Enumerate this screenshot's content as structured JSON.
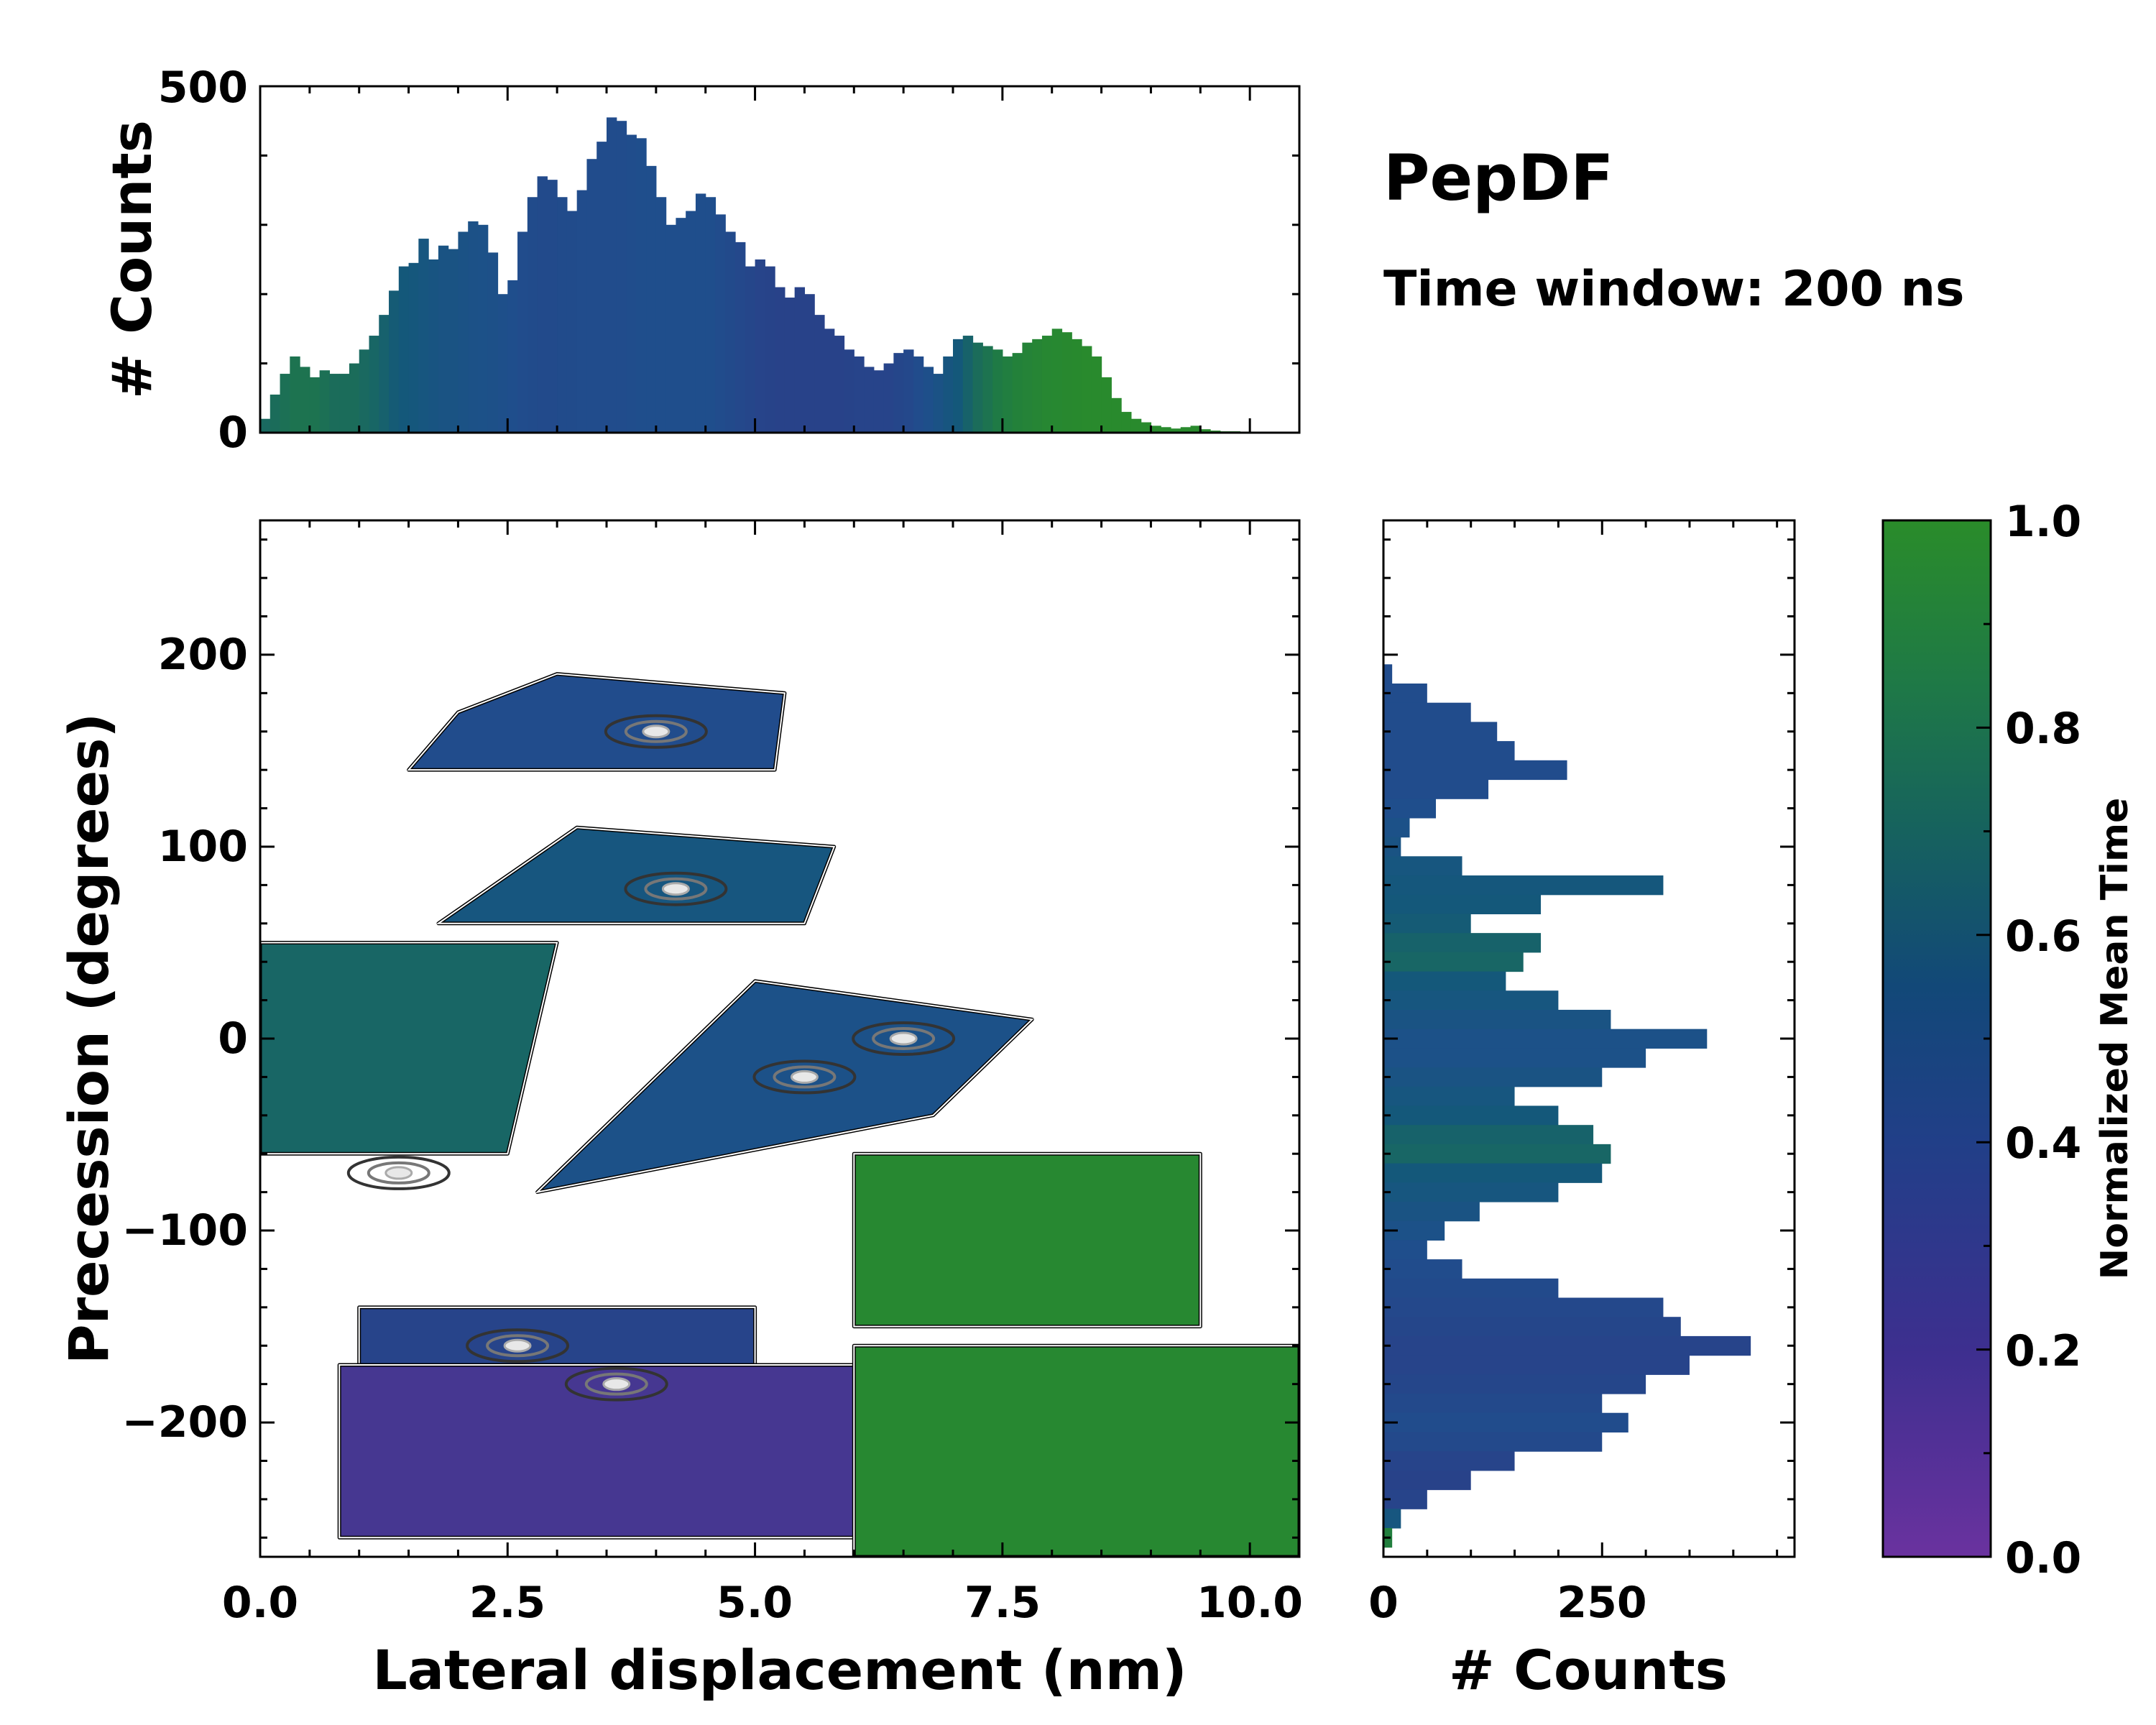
{
  "chart_data": [
    {
      "id": "top_histogram",
      "type": "histogram",
      "ylabel": "# Counts",
      "xlim": [
        0.0,
        10.5
      ],
      "ylim": [
        0,
        500
      ],
      "yticks": [
        "0",
        "500"
      ],
      "x": [
        0.0,
        0.1,
        0.2,
        0.3,
        0.4,
        0.5,
        0.6,
        0.7,
        0.8,
        0.9,
        1.0,
        1.1,
        1.2,
        1.3,
        1.4,
        1.5,
        1.6,
        1.7,
        1.8,
        1.9,
        2.0,
        2.1,
        2.2,
        2.3,
        2.4,
        2.5,
        2.6,
        2.7,
        2.8,
        2.9,
        3.0,
        3.1,
        3.2,
        3.3,
        3.4,
        3.5,
        3.6,
        3.7,
        3.8,
        3.9,
        4.0,
        4.1,
        4.2,
        4.3,
        4.4,
        4.5,
        4.6,
        4.7,
        4.8,
        4.9,
        5.0,
        5.1,
        5.2,
        5.3,
        5.4,
        5.5,
        5.6,
        5.7,
        5.8,
        5.9,
        6.0,
        6.1,
        6.2,
        6.3,
        6.4,
        6.5,
        6.6,
        6.7,
        6.8,
        6.9,
        7.0,
        7.1,
        7.2,
        7.3,
        7.4,
        7.5,
        7.6,
        7.7,
        7.8,
        7.9,
        8.0,
        8.1,
        8.2,
        8.3,
        8.4,
        8.5,
        8.6,
        8.7,
        8.8,
        8.9,
        9.0,
        9.1,
        9.2,
        9.3,
        9.4,
        9.5,
        9.6,
        9.7,
        9.8,
        9.9,
        10.0,
        10.1,
        10.2,
        10.3,
        10.4
      ],
      "values": [
        20,
        55,
        85,
        110,
        95,
        80,
        90,
        85,
        85,
        100,
        120,
        140,
        170,
        205,
        240,
        245,
        280,
        250,
        270,
        265,
        290,
        305,
        300,
        260,
        200,
        220,
        290,
        340,
        370,
        365,
        340,
        320,
        350,
        395,
        420,
        455,
        450,
        430,
        425,
        385,
        340,
        300,
        310,
        320,
        345,
        340,
        315,
        290,
        275,
        240,
        250,
        240,
        210,
        195,
        210,
        200,
        170,
        150,
        140,
        120,
        110,
        95,
        90,
        100,
        115,
        120,
        110,
        95,
        85,
        110,
        135,
        140,
        130,
        125,
        120,
        110,
        115,
        130,
        135,
        140,
        150,
        145,
        135,
        125,
        110,
        80,
        50,
        30,
        20,
        15,
        10,
        8,
        6,
        8,
        10,
        5,
        3,
        2,
        2,
        1,
        1,
        1,
        0,
        0,
        0
      ],
      "time_values": [
        0.7,
        0.72,
        0.74,
        0.76,
        0.76,
        0.76,
        0.74,
        0.72,
        0.72,
        0.72,
        0.7,
        0.68,
        0.65,
        0.62,
        0.6,
        0.58,
        0.55,
        0.52,
        0.5,
        0.5,
        0.48,
        0.46,
        0.45,
        0.44,
        0.42,
        0.4,
        0.38,
        0.37,
        0.36,
        0.36,
        0.37,
        0.37,
        0.38,
        0.38,
        0.38,
        0.38,
        0.38,
        0.39,
        0.4,
        0.4,
        0.4,
        0.4,
        0.4,
        0.4,
        0.4,
        0.4,
        0.38,
        0.36,
        0.34,
        0.32,
        0.3,
        0.29,
        0.28,
        0.28,
        0.28,
        0.28,
        0.28,
        0.28,
        0.28,
        0.29,
        0.3,
        0.3,
        0.3,
        0.3,
        0.32,
        0.34,
        0.38,
        0.42,
        0.48,
        0.54,
        0.6,
        0.66,
        0.72,
        0.76,
        0.8,
        0.84,
        0.88,
        0.9,
        0.92,
        0.94,
        0.95,
        0.96,
        0.97,
        0.98,
        0.98,
        0.98,
        0.98,
        0.98,
        0.98,
        0.98,
        0.98,
        0.98,
        0.98,
        0.98,
        0.98,
        0.98,
        0.98,
        0.98,
        0.98,
        0.98,
        0.98,
        0.98,
        0.98,
        0.98,
        0.98
      ]
    },
    {
      "id": "main_2d_histogram",
      "type": "heatmap",
      "xlabel": "Lateral displacement (nm)",
      "ylabel": "Precession (degrees)",
      "xlim": [
        0.0,
        10.5
      ],
      "ylim": [
        -270,
        270
      ],
      "xticks": [
        "0.0",
        "2.5",
        "5.0",
        "7.5",
        "10.0"
      ],
      "xtick_values": [
        0.0,
        2.5,
        5.0,
        7.5,
        10.0
      ],
      "yticks": [
        "−200",
        "−100",
        "0",
        "100",
        "200"
      ],
      "ytick_values": [
        -200,
        -100,
        0,
        100,
        200
      ],
      "regions": [
        {
          "name": "top-lobe",
          "x": [
            1.5,
            5.2,
            5.3,
            3.0,
            2.0,
            1.5
          ],
          "y": [
            140,
            140,
            180,
            190,
            170,
            140
          ],
          "time": 0.38
        },
        {
          "name": "upper-mid-lobe",
          "x": [
            1.8,
            5.5,
            5.8,
            3.2,
            1.8
          ],
          "y": [
            60,
            60,
            100,
            110,
            60
          ],
          "time": 0.55
        },
        {
          "name": "left-mid-lobe",
          "x": [
            0.0,
            2.5,
            3.0,
            0.0
          ],
          "y": [
            -60,
            -60,
            50,
            50
          ],
          "time": 0.68
        },
        {
          "name": "center-lobe",
          "x": [
            2.8,
            6.8,
            7.8,
            5.0,
            2.8
          ],
          "y": [
            -80,
            -40,
            10,
            30,
            -80
          ],
          "time": 0.45
        },
        {
          "name": "right-lobe",
          "x": [
            6.0,
            9.5,
            9.5,
            6.0
          ],
          "y": [
            -150,
            -150,
            -60,
            -60
          ],
          "time": 0.95
        },
        {
          "name": "lower-left-lobe",
          "x": [
            1.0,
            5.0,
            5.0,
            1.0
          ],
          "y": [
            -190,
            -190,
            -140,
            -140
          ],
          "time": 0.3
        },
        {
          "name": "bottom-lobe",
          "x": [
            0.8,
            6.5,
            6.0,
            0.8
          ],
          "y": [
            -260,
            -260,
            -170,
            -170
          ],
          "time": 0.12
        },
        {
          "name": "bottom-right-lobe",
          "x": [
            6.0,
            10.5,
            10.5,
            6.0
          ],
          "y": [
            -270,
            -270,
            -160,
            -160
          ],
          "time": 0.95
        }
      ],
      "hotspots": [
        {
          "x": 3.6,
          "y": -180
        },
        {
          "x": 2.6,
          "y": -160
        },
        {
          "x": 4.2,
          "y": 78
        },
        {
          "x": 4.0,
          "y": 160
        },
        {
          "x": 6.5,
          "y": 0
        },
        {
          "x": 5.5,
          "y": -20
        },
        {
          "x": 1.4,
          "y": -70
        }
      ]
    },
    {
      "id": "right_histogram",
      "type": "histogram",
      "orientation": "horizontal",
      "xlabel": "# Counts",
      "xlim": [
        0,
        470
      ],
      "xticks": [
        "0",
        "250"
      ],
      "xtick_values": [
        0,
        250
      ],
      "y": [
        190,
        180,
        170,
        160,
        150,
        140,
        130,
        120,
        110,
        100,
        90,
        80,
        70,
        60,
        50,
        40,
        30,
        20,
        10,
        0,
        -10,
        -20,
        -30,
        -40,
        -50,
        -60,
        -70,
        -80,
        -90,
        -100,
        -110,
        -120,
        -130,
        -140,
        -150,
        -160,
        -170,
        -180,
        -190,
        -200,
        -210,
        -220,
        -230,
        -240,
        -250,
        -260,
        -270
      ],
      "values": [
        10,
        50,
        100,
        130,
        150,
        210,
        120,
        60,
        30,
        20,
        90,
        320,
        180,
        100,
        180,
        160,
        140,
        200,
        260,
        370,
        300,
        250,
        150,
        200,
        240,
        260,
        250,
        200,
        110,
        70,
        50,
        90,
        200,
        320,
        340,
        420,
        350,
        300,
        250,
        280,
        250,
        150,
        100,
        50,
        20,
        10,
        0
      ],
      "time_values": [
        0.38,
        0.38,
        0.38,
        0.38,
        0.38,
        0.38,
        0.38,
        0.4,
        0.45,
        0.5,
        0.55,
        0.58,
        0.6,
        0.62,
        0.66,
        0.68,
        0.6,
        0.55,
        0.5,
        0.45,
        0.45,
        0.5,
        0.55,
        0.6,
        0.66,
        0.68,
        0.6,
        0.55,
        0.5,
        0.45,
        0.4,
        0.38,
        0.36,
        0.34,
        0.32,
        0.3,
        0.3,
        0.32,
        0.35,
        0.38,
        0.35,
        0.3,
        0.28,
        0.3,
        0.55,
        0.85,
        0.95
      ]
    },
    {
      "id": "colorbar",
      "type": "colorbar",
      "label": "Normalized Mean Time",
      "range": [
        0.0,
        1.0
      ],
      "ticks": [
        "0.0",
        "0.2",
        "0.4",
        "0.6",
        "0.8",
        "1.0"
      ],
      "tick_values": [
        0.0,
        0.2,
        0.4,
        0.6,
        0.8,
        1.0
      ],
      "colormap": [
        "#6a329f",
        "#2e3a87",
        "#1f4e8c",
        "#14587a",
        "#1f7a45",
        "#2a8c2a"
      ]
    }
  ],
  "title": "PepDF",
  "subtitle": "Time window: 200 ns"
}
